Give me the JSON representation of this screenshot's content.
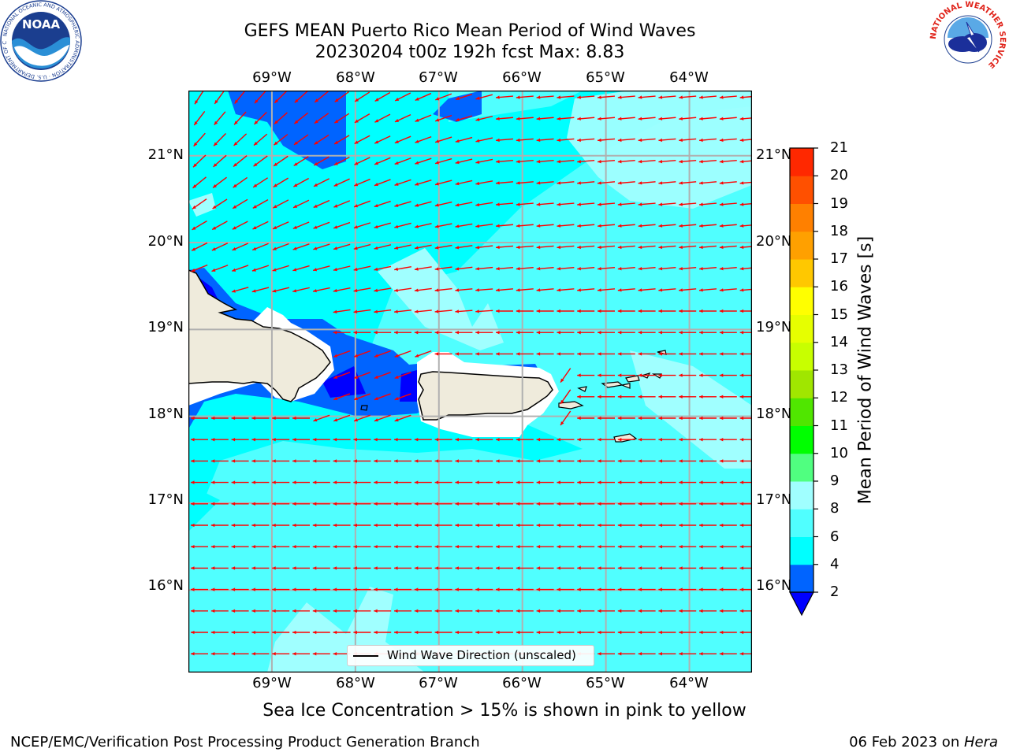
{
  "title_line1": "GEFS MEAN Puerto Rico Mean Period of Wind Waves",
  "title_line2": "20230204 t00z 192h fcst   Max: 8.83",
  "lon_labels": [
    "69°W",
    "68°W",
    "67°W",
    "66°W",
    "65°W",
    "64°W"
  ],
  "lat_labels": [
    "21°N",
    "20°N",
    "19°N",
    "18°N",
    "17°N",
    "16°N"
  ],
  "colorbar": {
    "label": "Mean Period of Wind Waves [s]",
    "ticks": [
      "2",
      "4",
      "6",
      "8",
      "9",
      "10",
      "11",
      "12",
      "13",
      "14",
      "15",
      "16",
      "17",
      "18",
      "19",
      "20",
      "21"
    ],
    "colors": [
      "#0064ff",
      "#00ffff",
      "#50ffff",
      "#a0ffff",
      "#50ff80",
      "#00ff00",
      "#50e600",
      "#a0e600",
      "#c8ff00",
      "#e6ff00",
      "#ffff00",
      "#ffc800",
      "#ffa000",
      "#ff8000",
      "#ff5000",
      "#ff2800",
      "#ff0000"
    ],
    "under_color": "#0000ff"
  },
  "legend_label": "Wind Wave Direction (unscaled)",
  "caption": "Sea Ice Concentration > 15% is shown in pink to yellow",
  "footer_left": "NCEP/EMC/Verification Post Processing Product Generation Branch",
  "footer_date": "06 Feb 2023 on ",
  "footer_host": "Hera",
  "logos": {
    "noaa": "NOAA",
    "noaa_ring": "NATIONAL OCEANIC AND ATMOSPHERIC ADMINISTRATION · U.S. DEPARTMENT OF COMMERCE",
    "nws_ring": "NATIONAL WEATHER SERVICE"
  },
  "colors": {
    "land": "#efebdc",
    "arrow": "#ff0000",
    "grid": "#b0b0b0"
  }
}
